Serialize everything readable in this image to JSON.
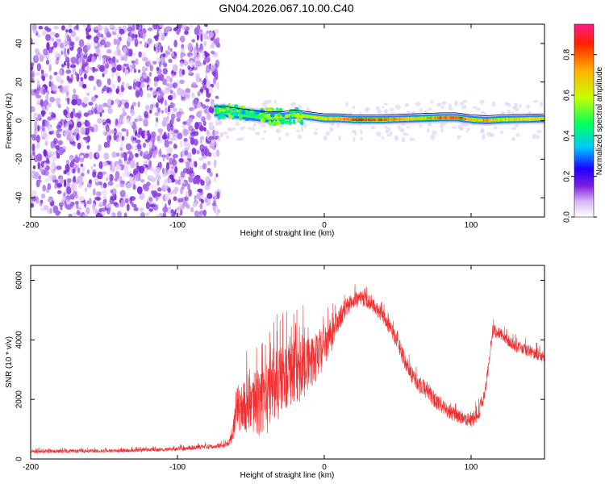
{
  "page_title": "GN04.2026.067.10.00.C40",
  "colors": {
    "snr_line": "#f03030",
    "speckle": "#8a2be2",
    "trace_line": "#000000",
    "frame": "#000000"
  },
  "chart_data": [
    {
      "type": "heatmap",
      "title": "",
      "xlabel": "Height of straight line (km)",
      "ylabel": "Frequency (Hz)",
      "xlim": [
        -200,
        150
      ],
      "ylim": [
        -50,
        50
      ],
      "x_ticks": [
        -200,
        -100,
        0,
        100
      ],
      "y_ticks": [
        -40,
        -20,
        0,
        20,
        40
      ],
      "colorbar": {
        "label": "Normalized spectral amplitude",
        "range": [
          0,
          0.95
        ],
        "ticks": [
          0.0,
          0.2,
          0.4,
          0.6,
          0.8
        ]
      },
      "noise_region": {
        "x_range": [
          -200,
          -72
        ],
        "freq_range": [
          -50,
          50
        ]
      },
      "ridge": {
        "x": [
          -75,
          -70,
          -60,
          -50,
          -40,
          -30,
          -20,
          -10,
          0,
          10,
          20,
          30,
          40,
          60,
          80,
          90,
          100,
          110,
          120,
          150
        ],
        "freq": [
          5,
          5,
          4,
          3,
          2,
          2,
          3,
          2,
          1,
          1,
          0.5,
          0.5,
          0.5,
          1,
          1.5,
          1.5,
          0.5,
          0,
          0.5,
          1
        ],
        "amplitude": [
          0.5,
          0.45,
          0.4,
          0.45,
          0.55,
          0.7,
          0.6,
          0.65,
          0.7,
          0.75,
          0.9,
          0.9,
          0.85,
          0.7,
          0.85,
          0.9,
          0.75,
          0.8,
          0.7,
          0.7
        ]
      }
    },
    {
      "type": "line",
      "title": "",
      "xlabel": "Height of straight line (km)",
      "ylabel": "SNR (10 * v/v)",
      "xlim": [
        -200,
        150
      ],
      "ylim": [
        0,
        6500
      ],
      "x_ticks": [
        -200,
        -100,
        0,
        100
      ],
      "y_ticks": [
        0,
        2000,
        4000,
        6000
      ],
      "series": [
        {
          "x": [
            -200,
            -180,
            -160,
            -140,
            -120,
            -100,
            -90,
            -80,
            -70,
            -65,
            -62,
            -60,
            -55,
            -50,
            -45,
            -40,
            -35,
            -30,
            -25,
            -20,
            -15,
            -10,
            -5,
            0,
            5,
            10,
            15,
            20,
            25,
            30,
            35,
            40,
            45,
            50,
            55,
            60,
            65,
            70,
            75,
            80,
            85,
            90,
            95,
            100,
            105,
            110,
            115,
            120,
            130,
            140,
            150
          ],
          "y_mean": [
            250,
            260,
            270,
            280,
            300,
            340,
            380,
            420,
            460,
            500,
            900,
            1700,
            1800,
            2000,
            1900,
            2100,
            2400,
            2700,
            2800,
            2900,
            3000,
            3200,
            3400,
            3800,
            4200,
            4700,
            5100,
            5300,
            5400,
            5300,
            5100,
            4800,
            4400,
            3900,
            3300,
            2800,
            2500,
            2300,
            2000,
            1800,
            1600,
            1450,
            1350,
            1300,
            1500,
            2400,
            4300,
            4200,
            3800,
            3600,
            3400
          ],
          "y_spread": [
            120,
            120,
            120,
            120,
            120,
            140,
            140,
            160,
            160,
            200,
            600,
            1500,
            1900,
            2200,
            2300,
            2400,
            2300,
            2300,
            2200,
            2200,
            2100,
            2000,
            1800,
            1500,
            1100,
            800,
            600,
            600,
            500,
            500,
            500,
            500,
            500,
            500,
            600,
            600,
            600,
            600,
            550,
            500,
            500,
            450,
            450,
            450,
            500,
            500,
            400,
            400,
            400,
            400,
            400
          ]
        }
      ]
    }
  ]
}
